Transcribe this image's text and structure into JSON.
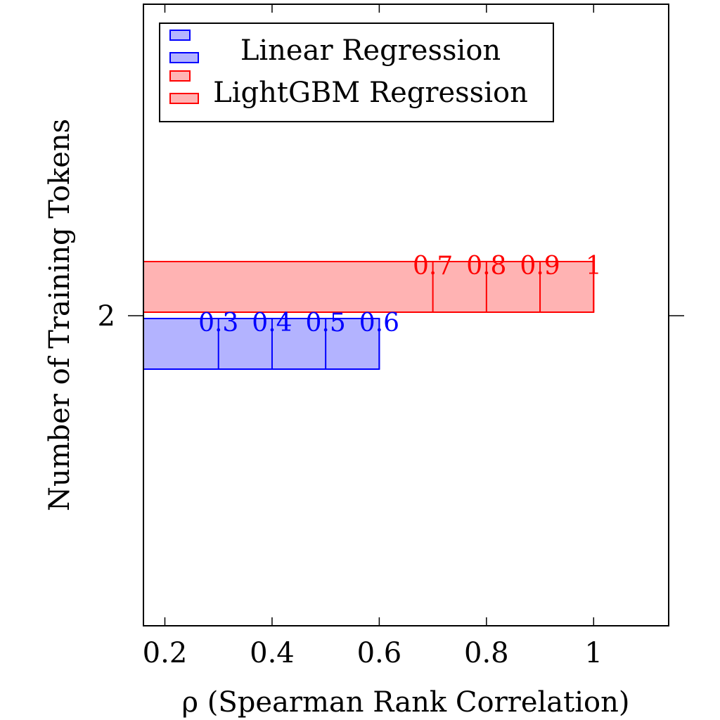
{
  "chart_data": {
    "type": "bar",
    "orientation": "horizontal",
    "xlabel": "ρ (Spearman Rank Correlation)",
    "ylabel": "Number of Training Tokens",
    "categories": [
      "2"
    ],
    "xlim": [
      0.16,
      1.14
    ],
    "xticks": [
      "0.2",
      "0.4",
      "0.6",
      "0.8",
      "1"
    ],
    "grid": false,
    "legend_position": "top-left",
    "series": [
      {
        "name": "Linear Regression",
        "color": "#0000ff",
        "fill": "#b3b3ff",
        "values": [
          0.6
        ],
        "stack_marks": [
          0.3,
          0.4,
          0.5,
          0.6
        ],
        "mark_labels": [
          "0.3",
          "0.4",
          "0.5",
          "0.6"
        ]
      },
      {
        "name": "LightGBM Regression",
        "color": "#ff0000",
        "fill": "#ffb3b3",
        "values": [
          1.0
        ],
        "stack_marks": [
          0.7,
          0.8,
          0.9,
          1.0
        ],
        "mark_labels": [
          "0.7",
          "0.8",
          "0.9",
          "1"
        ]
      }
    ]
  }
}
